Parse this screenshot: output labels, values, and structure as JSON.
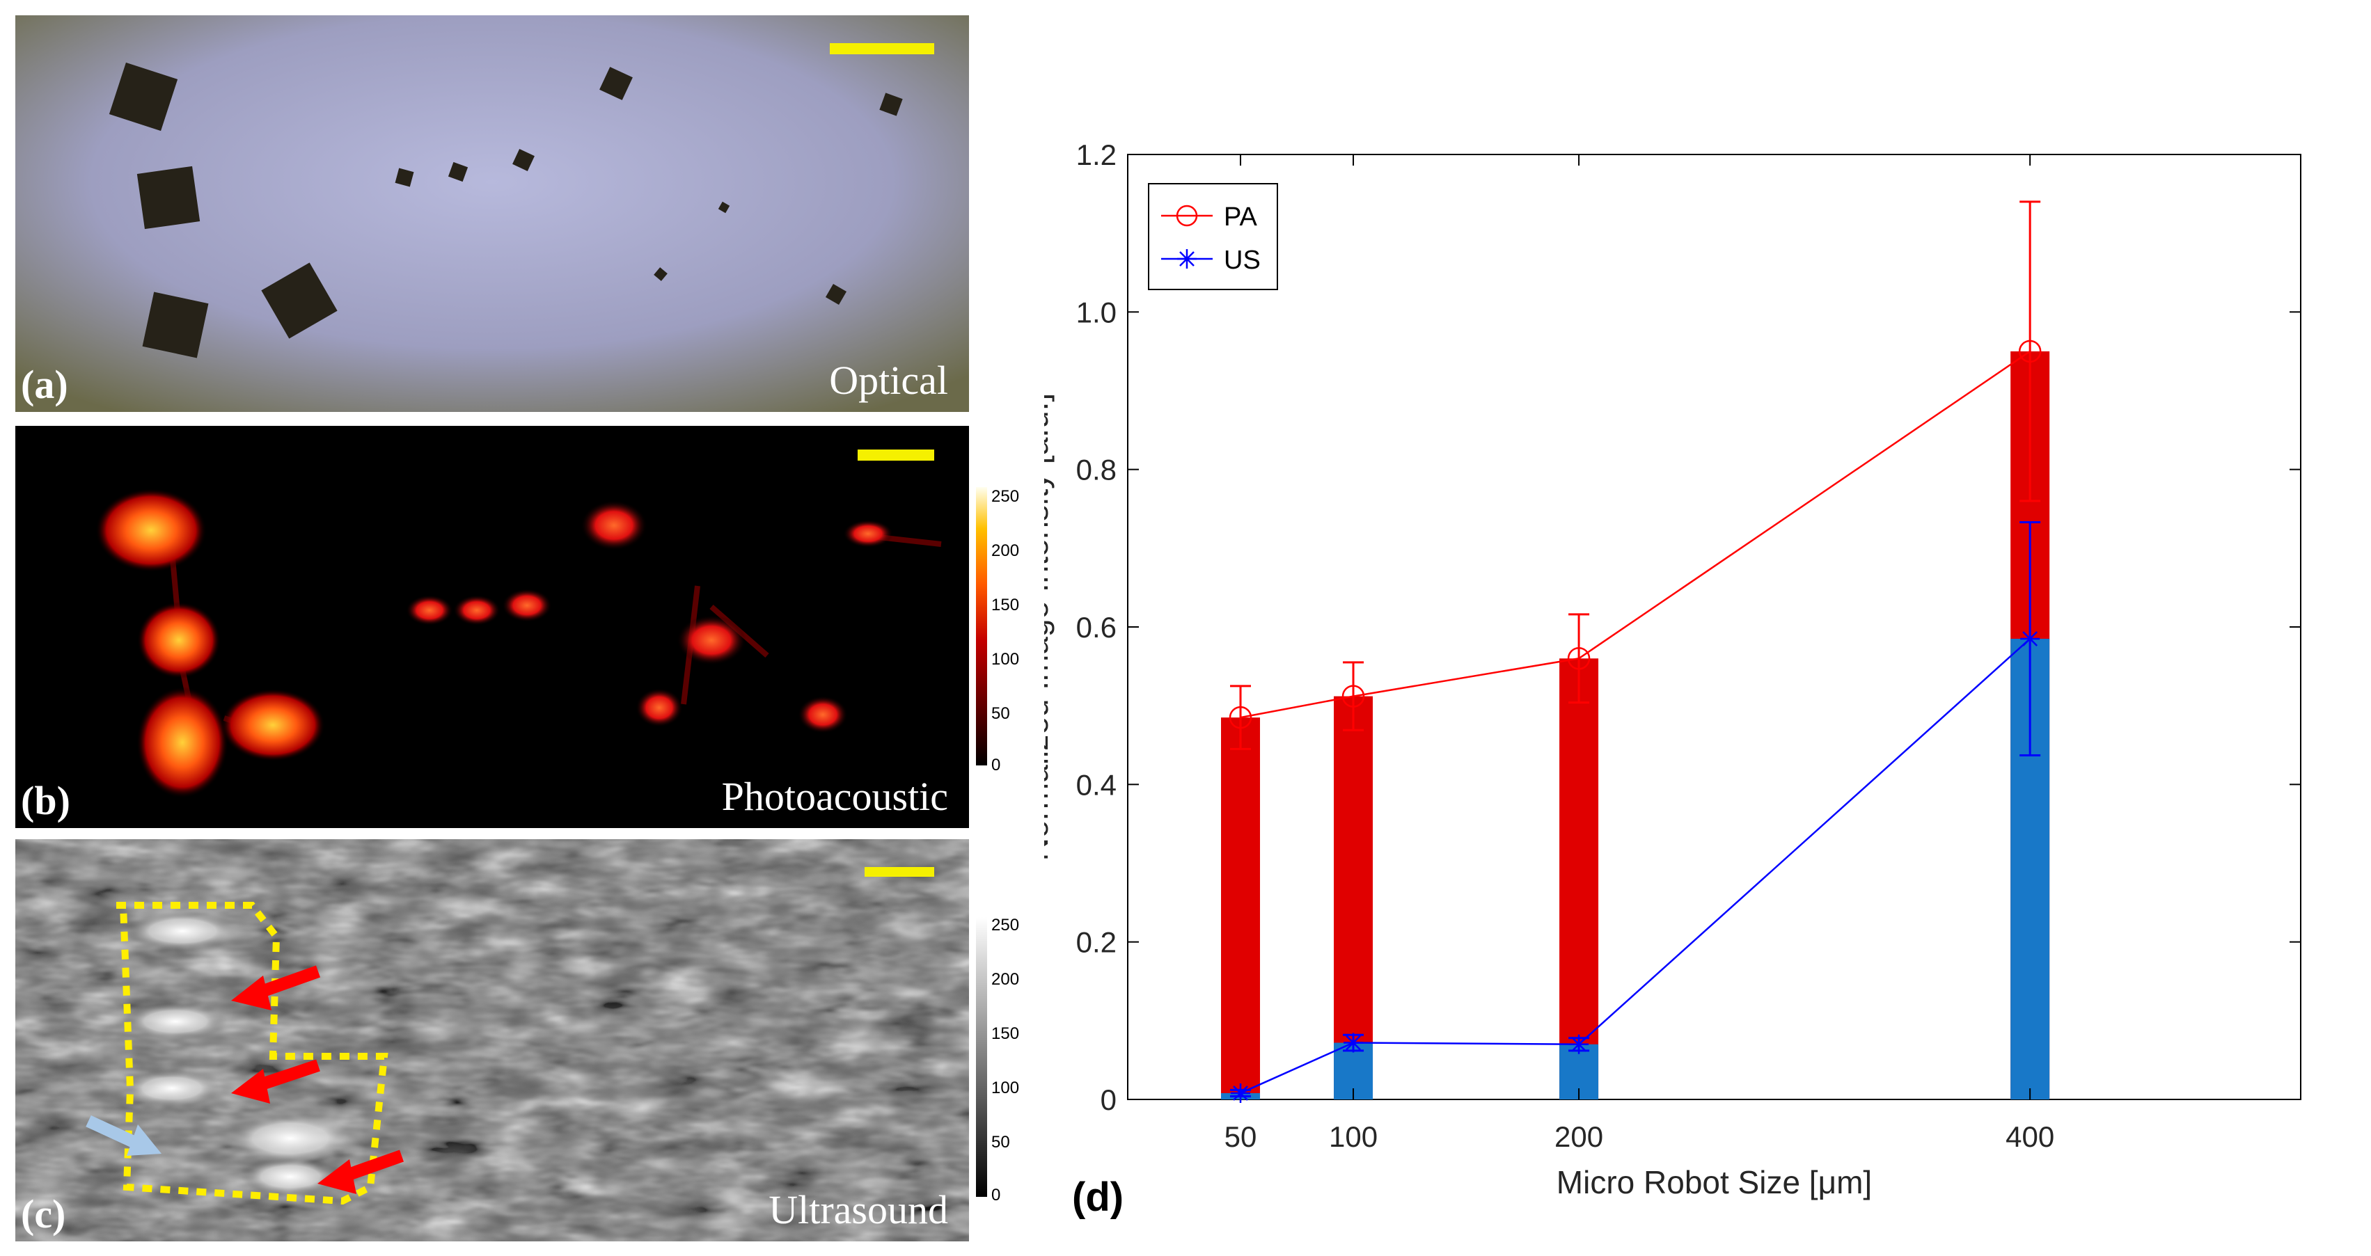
{
  "panels": {
    "a": {
      "label": "(a)",
      "modality": "Optical"
    },
    "b": {
      "label": "(b)",
      "modality": "Photoacoustic"
    },
    "c": {
      "label": "(c)",
      "modality": "Ultrasound"
    },
    "d": {
      "label": "(d)"
    }
  },
  "colorbars": {
    "photoacoustic_ticks": [
      "250",
      "200",
      "150",
      "100",
      "50",
      "0"
    ],
    "ultrasound_ticks": [
      "250",
      "200",
      "150",
      "100",
      "50",
      "0"
    ]
  },
  "colors": {
    "scale_bar": "#f5f000",
    "pa": "#ff0000",
    "us": "#0000ff",
    "pa_bar": "#e00000",
    "us_bar": "#1878c8",
    "annotation_arrow_red": "#ff0000",
    "annotation_arrow_blue": "#a8c8e8",
    "annotation_outline": "#ffee00"
  },
  "chart_data": {
    "type": "bar",
    "xlabel": "Micro Robot Size [μm]",
    "ylabel": "Normalized Image Intensity [a.u.]",
    "categories": [
      "50",
      "100",
      "200",
      "400"
    ],
    "x": [
      50,
      100,
      200,
      400
    ],
    "xlim": [
      0,
      520
    ],
    "ylim": [
      0,
      1.2
    ],
    "yticks": [
      0,
      0.2,
      0.4,
      0.6,
      0.8,
      1.0,
      1.2
    ],
    "ytick_labels": [
      "0",
      "0.2",
      "0.4",
      "0.6",
      "0.8",
      "1.0",
      "1.2"
    ],
    "legend_position": "top-left",
    "series": [
      {
        "name": "PA",
        "values": [
          0.485,
          0.512,
          0.56,
          0.95
        ],
        "errors": [
          0.04,
          0.043,
          0.056,
          0.19
        ],
        "marker": "circle",
        "color": "#ff0000"
      },
      {
        "name": "US",
        "values": [
          0.008,
          0.072,
          0.07,
          0.585
        ],
        "errors": [
          0.004,
          0.01,
          0.008,
          0.148
        ],
        "marker": "asterisk",
        "color": "#0000ff"
      }
    ]
  }
}
